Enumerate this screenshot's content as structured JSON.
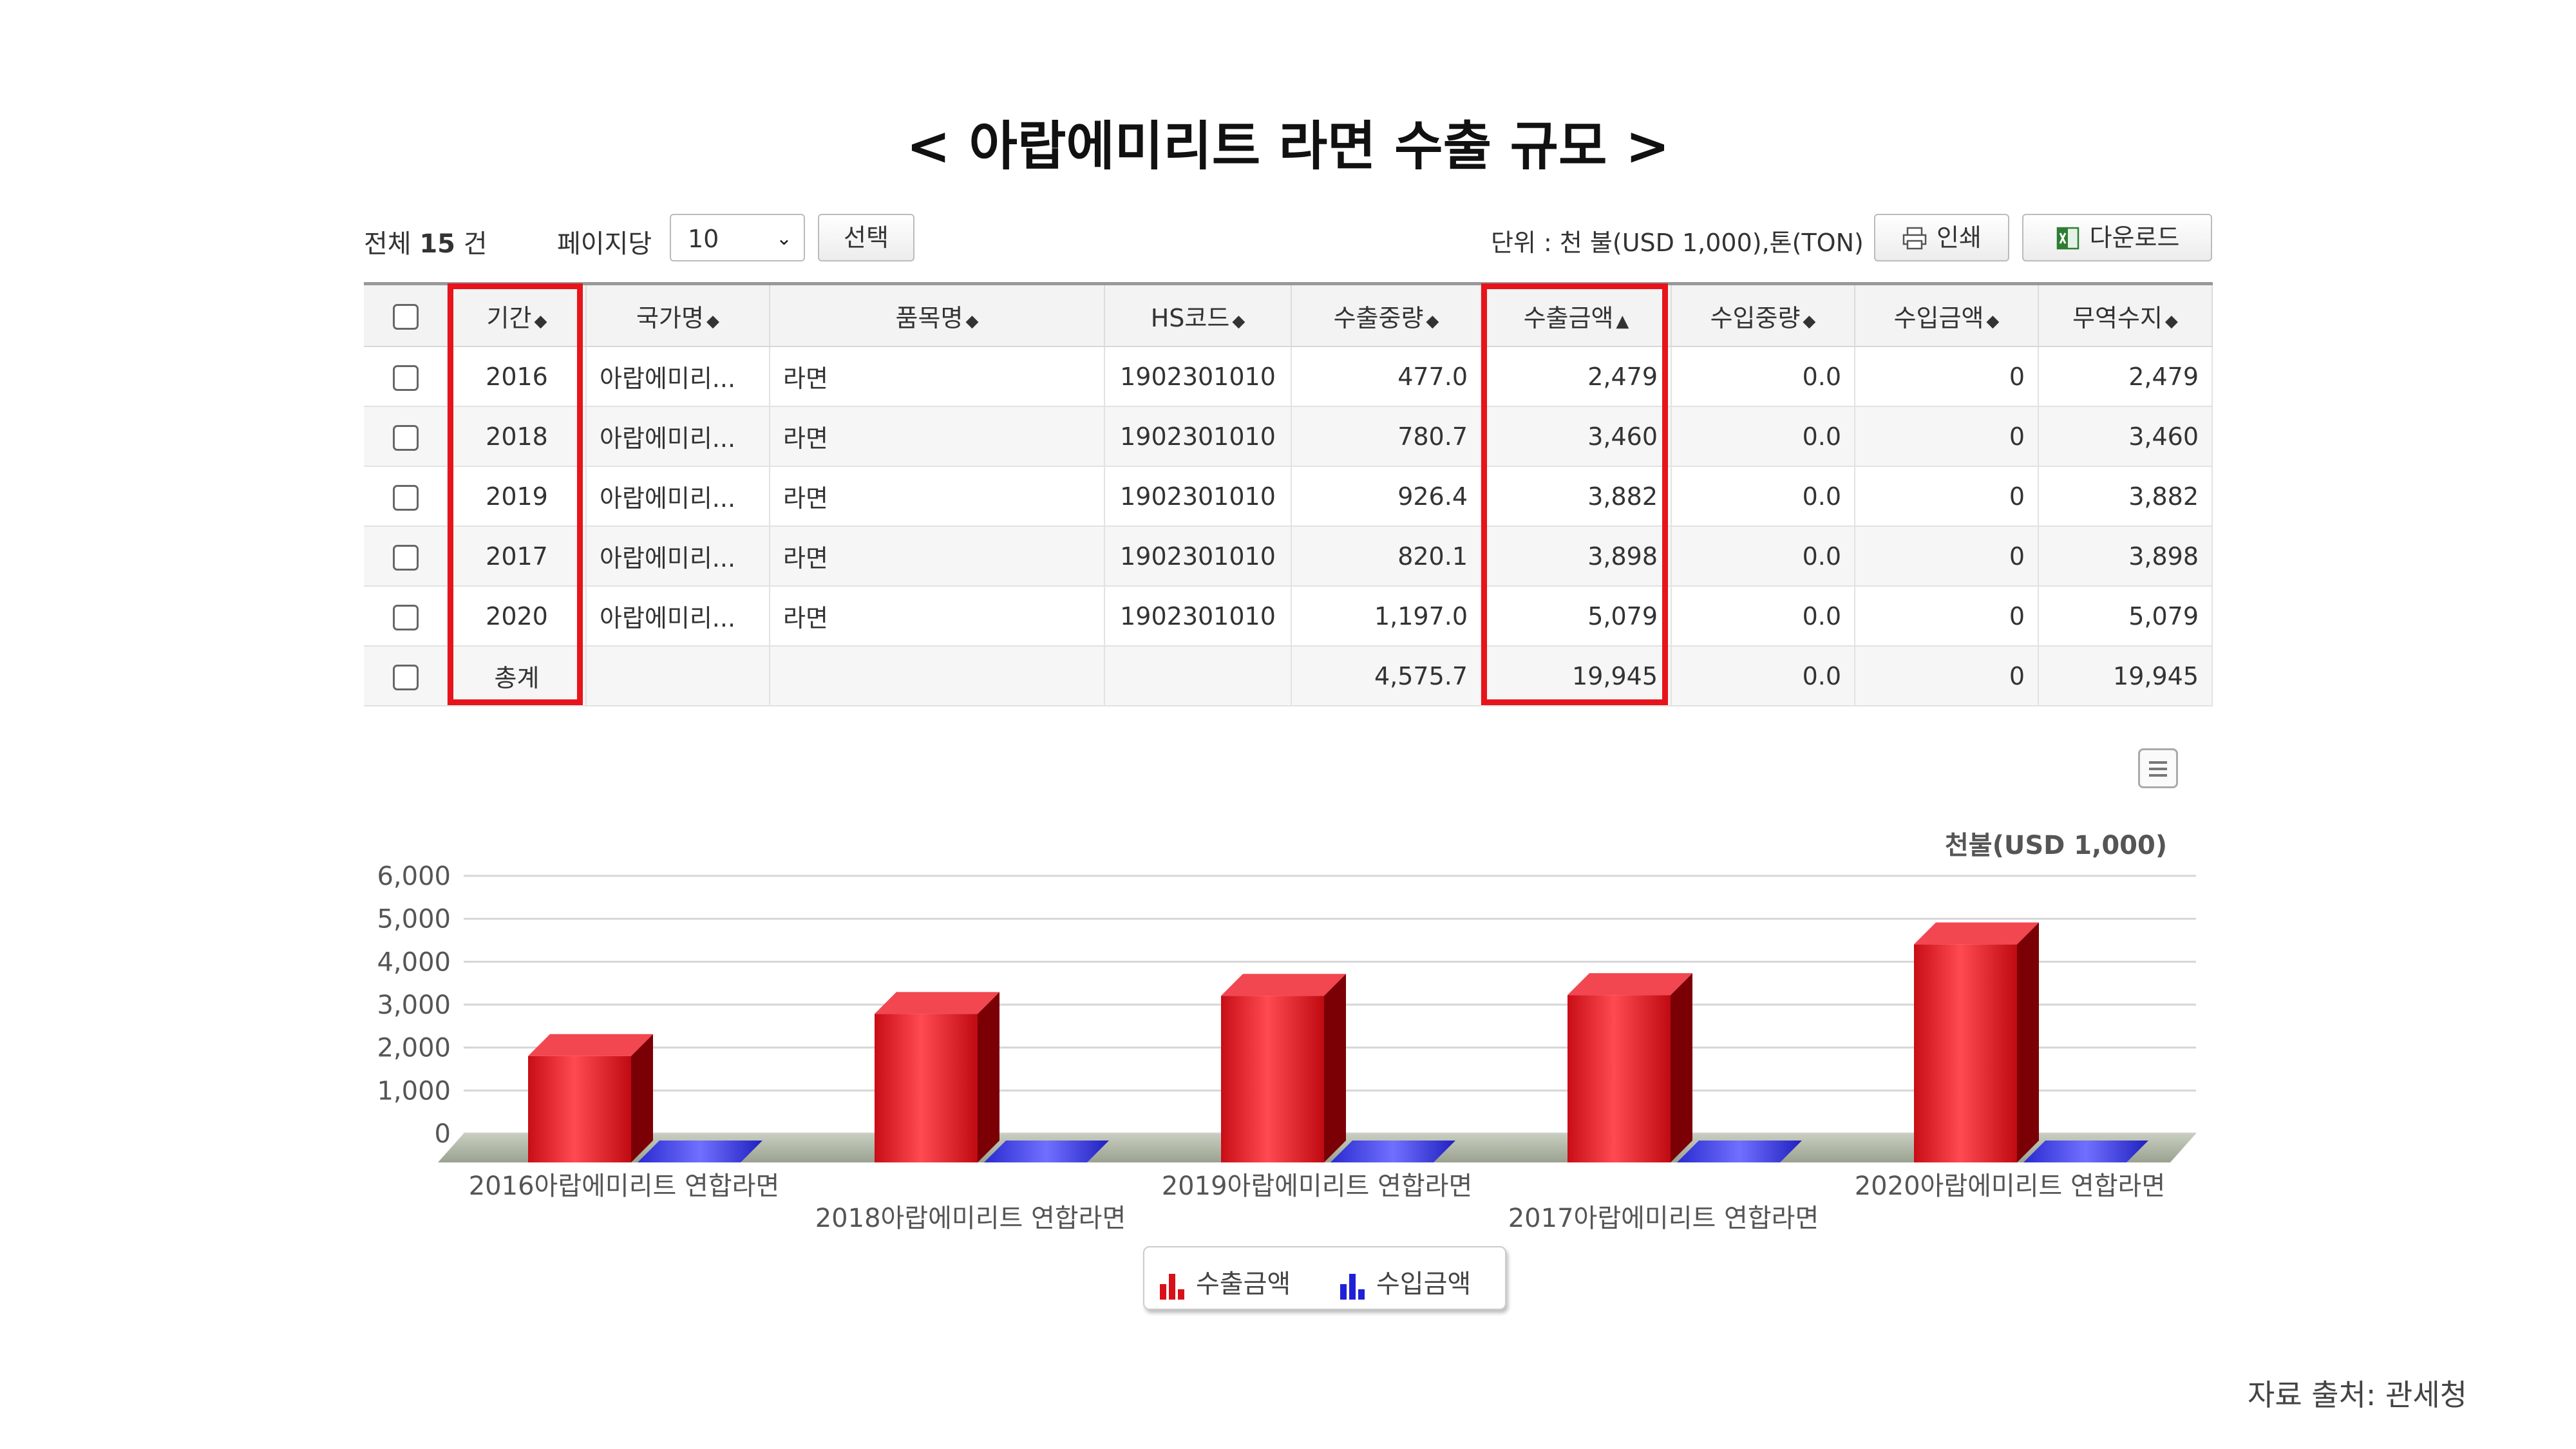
{
  "page_title": "< 아랍에미리트 라면 수출 규모 >",
  "toolbar": {
    "total_prefix": "전체",
    "total_count": "15",
    "total_suffix": "건",
    "per_page_label": "페이지당",
    "per_page_value": "10",
    "select_button": "선택",
    "unit_text": "단위 : 천 불(USD 1,000),톤(TON)",
    "print_button": "인쇄",
    "download_button": "다운로드"
  },
  "table": {
    "columns": [
      "기간",
      "국가명",
      "품목명",
      "HS코드",
      "수출중량",
      "수출금액",
      "수입중량",
      "수입금액",
      "무역수지"
    ],
    "sort_marks": [
      "◆",
      "◆",
      "◆",
      "◆",
      "◆",
      "▲",
      "◆",
      "◆",
      "◆"
    ],
    "rows": [
      [
        "2016",
        "아랍에미리...",
        "라면",
        "1902301010",
        "477.0",
        "2,479",
        "0.0",
        "0",
        "2,479"
      ],
      [
        "2018",
        "아랍에미리...",
        "라면",
        "1902301010",
        "780.7",
        "3,460",
        "0.0",
        "0",
        "3,460"
      ],
      [
        "2019",
        "아랍에미리...",
        "라면",
        "1902301010",
        "926.4",
        "3,882",
        "0.0",
        "0",
        "3,882"
      ],
      [
        "2017",
        "아랍에미리...",
        "라면",
        "1902301010",
        "820.1",
        "3,898",
        "0.0",
        "0",
        "3,898"
      ],
      [
        "2020",
        "아랍에미리...",
        "라면",
        "1902301010",
        "1,197.0",
        "5,079",
        "0.0",
        "0",
        "5,079"
      ],
      [
        "총계",
        "",
        "",
        "",
        "4,575.7",
        "19,945",
        "0.0",
        "0",
        "19,945"
      ]
    ]
  },
  "chart_data": {
    "type": "bar",
    "unit_label": "천불(USD 1,000)",
    "categories": [
      "2016아랍에미리트 연합라면",
      "2018아랍에미리트 연합라면",
      "2019아랍에미리트 연합라면",
      "2017아랍에미리트 연합라면",
      "2020아랍에미리트 연합라면"
    ],
    "series": [
      {
        "name": "수출금액",
        "values": [
          2479,
          3460,
          3882,
          3898,
          5079
        ],
        "color": "#d8101a"
      },
      {
        "name": "수입금액",
        "values": [
          0,
          0,
          0,
          0,
          0
        ],
        "color": "#2020d8"
      }
    ],
    "ylim": [
      0,
      6000
    ],
    "yticks": [
      "0",
      "1,000",
      "2,000",
      "3,000",
      "4,000",
      "5,000",
      "6,000"
    ],
    "grid": true,
    "legend_position": "bottom-center",
    "style": "3d"
  },
  "footer": "자료 출처: 관세청",
  "colors": {
    "highlight": "#e8141b",
    "accent_red": "#d8101a",
    "accent_blue": "#2020d8"
  }
}
